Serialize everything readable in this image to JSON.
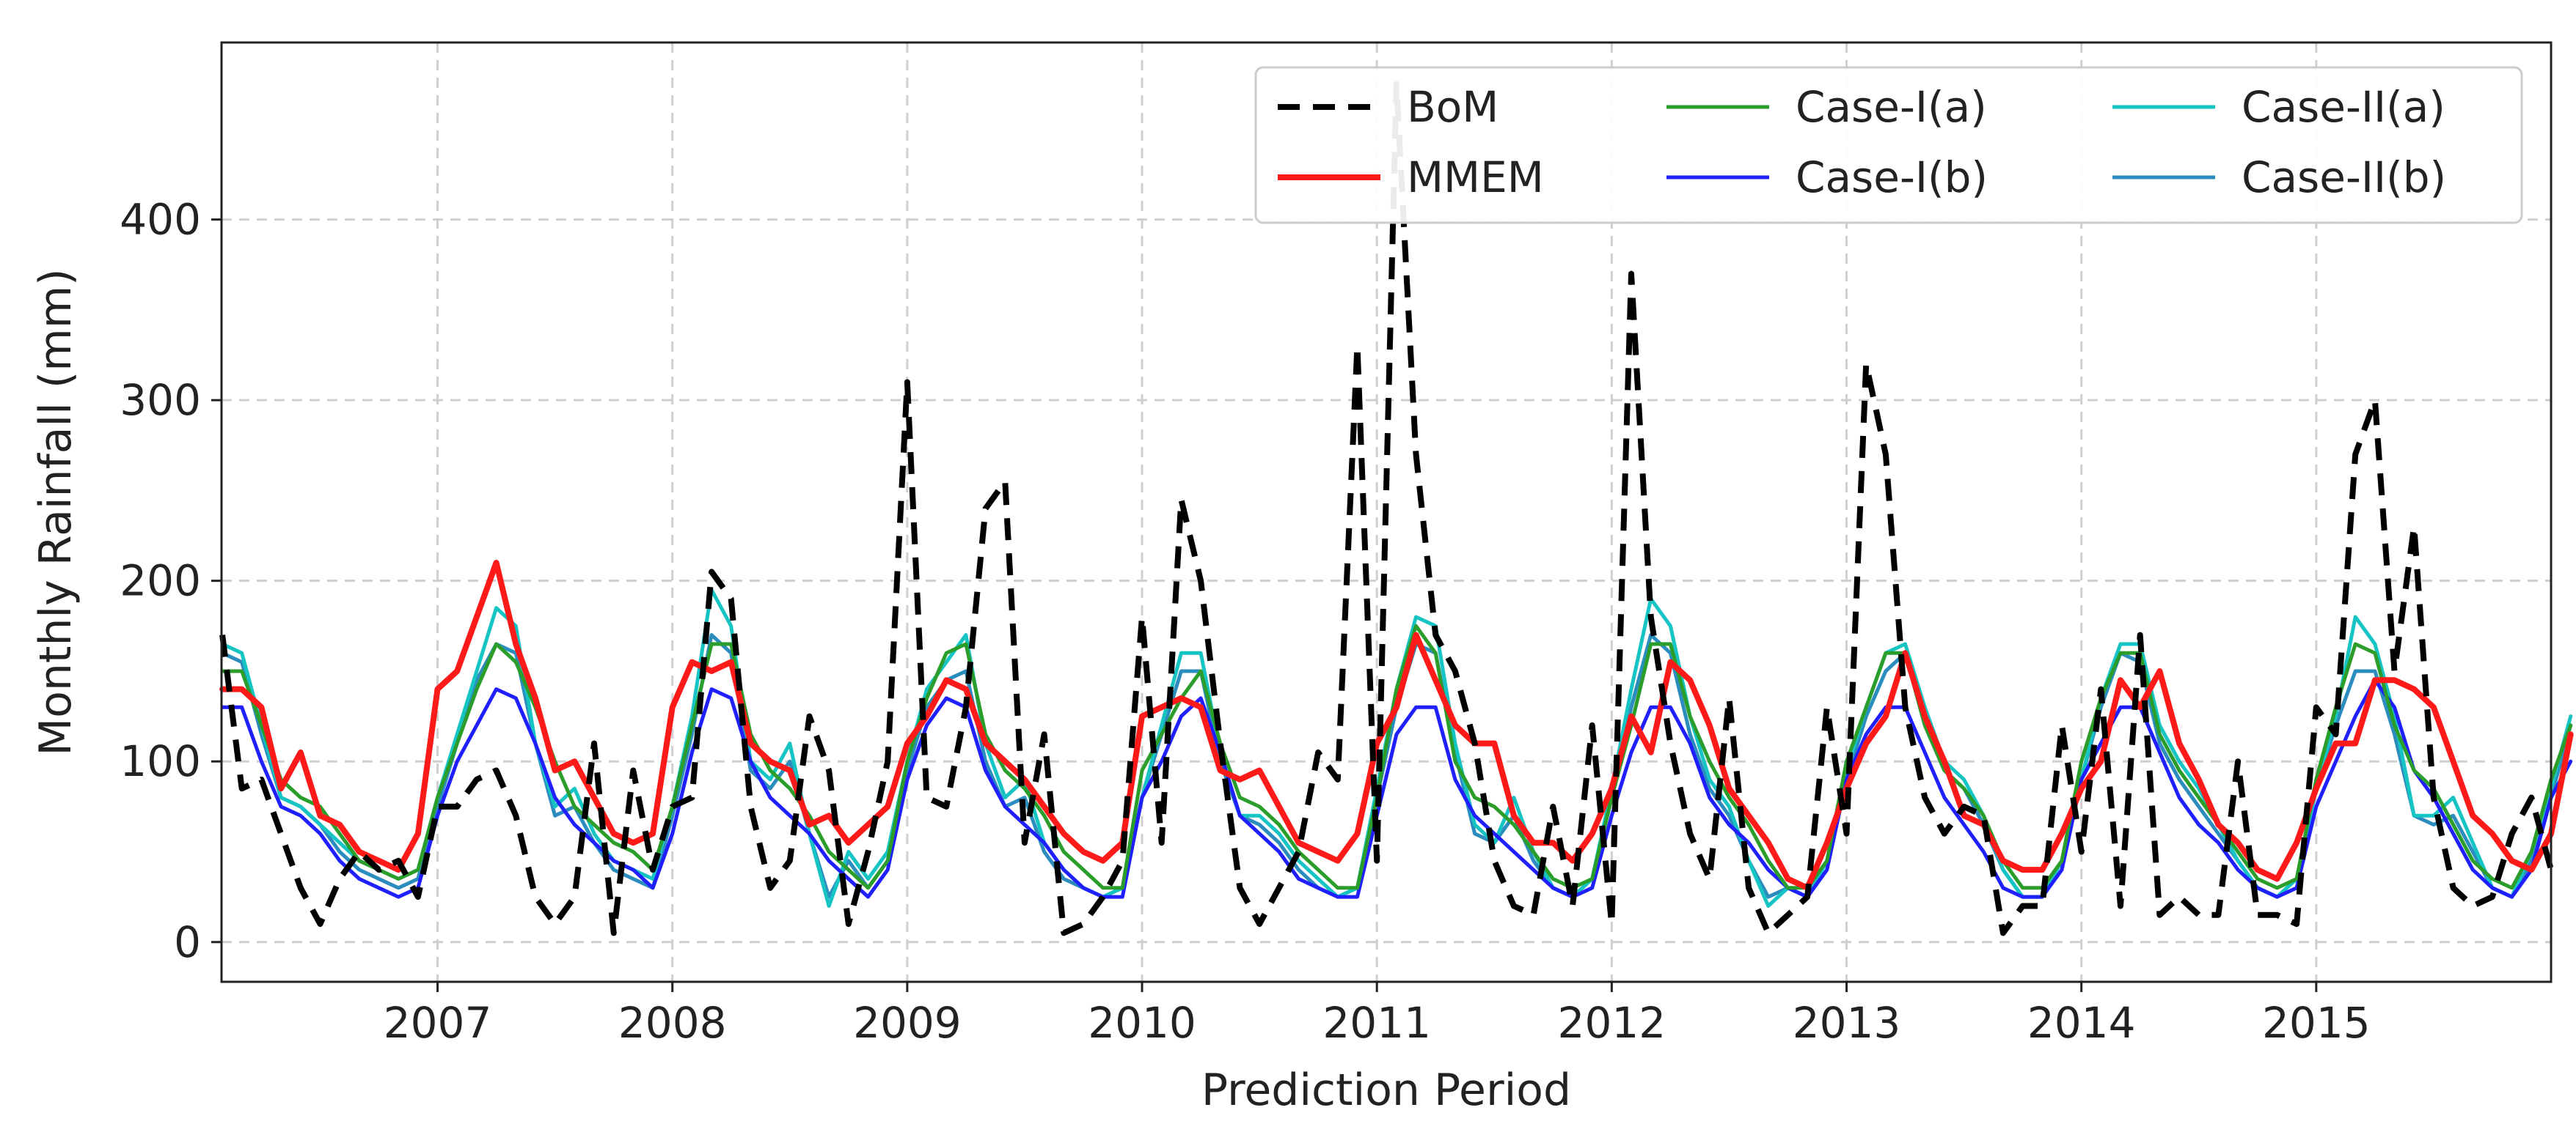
{
  "chart_data": {
    "type": "line",
    "title": "",
    "xlabel": "Prediction Period",
    "ylabel": "Monthly Rainfall (mm)",
    "xlim": [
      2006.08,
      2016.0
    ],
    "ylim": [
      -22,
      498
    ],
    "grid": true,
    "legend_position": "top-right",
    "x_ticks": [
      2007,
      2008,
      2009,
      2010,
      2011,
      2012,
      2013,
      2014,
      2015
    ],
    "x_tick_labels": [
      "2007",
      "2008",
      "2009",
      "2010",
      "2011",
      "2012",
      "2013",
      "2014",
      "2015"
    ],
    "y_ticks": [
      0,
      100,
      200,
      300,
      400
    ],
    "y_tick_labels": [
      "0",
      "100",
      "200",
      "300",
      "400"
    ],
    "x_start": 2006.0833,
    "x_step": 0.0833333,
    "series": [
      {
        "name": "BoM",
        "color": "#000000",
        "style": "dashed",
        "values": [
          170,
          85,
          90,
          60,
          30,
          10,
          35,
          50,
          40,
          45,
          25,
          75,
          75,
          90,
          95,
          70,
          25,
          10,
          25,
          110,
          5,
          95,
          40,
          75,
          80,
          205,
          190,
          75,
          30,
          45,
          125,
          95,
          10,
          50,
          100,
          310,
          80,
          75,
          130,
          240,
          255,
          55,
          115,
          5,
          10,
          25,
          45,
          180,
          55,
          245,
          200,
          110,
          30,
          10,
          30,
          50,
          105,
          90,
          330,
          45,
          475,
          270,
          170,
          150,
          110,
          45,
          20,
          15,
          75,
          20,
          120,
          10,
          370,
          180,
          110,
          60,
          35,
          135,
          30,
          5,
          15,
          25,
          130,
          60,
          320,
          270,
          130,
          80,
          60,
          75,
          70,
          5,
          20,
          20,
          120,
          50,
          140,
          20,
          170,
          15,
          25,
          15,
          15,
          100,
          15,
          15,
          10,
          130,
          115,
          270,
          300,
          150,
          230,
          80,
          30,
          20,
          25,
          60,
          80,
          40
        ]
      },
      {
        "name": "MMEM",
        "color": "#ff1a1a",
        "style": "solid",
        "values": [
          140,
          140,
          130,
          85,
          105,
          70,
          65,
          50,
          45,
          40,
          60,
          140,
          150,
          180,
          210,
          165,
          135,
          95,
          100,
          80,
          60,
          55,
          60,
          130,
          155,
          150,
          155,
          110,
          100,
          95,
          65,
          70,
          55,
          65,
          75,
          110,
          125,
          145,
          140,
          110,
          100,
          90,
          75,
          60,
          50,
          45,
          55,
          125,
          130,
          135,
          130,
          95,
          90,
          95,
          75,
          55,
          50,
          45,
          60,
          110,
          130,
          170,
          145,
          120,
          110,
          110,
          70,
          55,
          55,
          45,
          60,
          85,
          125,
          105,
          155,
          145,
          120,
          85,
          70,
          55,
          35,
          30,
          55,
          85,
          110,
          125,
          160,
          125,
          100,
          70,
          65,
          45,
          40,
          40,
          60,
          85,
          100,
          145,
          130,
          150,
          110,
          90,
          65,
          55,
          40,
          35,
          55,
          85,
          110,
          110,
          145,
          145,
          140,
          130,
          100,
          70,
          60,
          45,
          40,
          60,
          115
        ]
      },
      {
        "name": "Case-I(a)",
        "color": "#2a9d2a",
        "style": "solid",
        "values": [
          150,
          150,
          120,
          90,
          80,
          75,
          60,
          45,
          40,
          35,
          40,
          80,
          110,
          140,
          165,
          155,
          130,
          100,
          75,
          65,
          55,
          50,
          40,
          75,
          120,
          165,
          165,
          115,
          95,
          85,
          70,
          50,
          40,
          30,
          45,
          100,
          135,
          160,
          165,
          115,
          95,
          85,
          70,
          50,
          40,
          30,
          30,
          95,
          115,
          135,
          150,
          110,
          80,
          75,
          65,
          50,
          40,
          30,
          30,
          80,
          140,
          175,
          160,
          100,
          80,
          75,
          65,
          50,
          35,
          30,
          35,
          80,
          120,
          165,
          165,
          125,
          100,
          80,
          65,
          45,
          30,
          30,
          45,
          100,
          130,
          160,
          160,
          120,
          95,
          85,
          70,
          45,
          30,
          30,
          45,
          100,
          135,
          160,
          160,
          115,
          95,
          80,
          65,
          50,
          35,
          30,
          35,
          90,
          130,
          165,
          160,
          120,
          95,
          85,
          65,
          45,
          35,
          30,
          50,
          90,
          120
        ]
      },
      {
        "name": "Case-I(b)",
        "color": "#1f1fff",
        "style": "solid",
        "values": [
          130,
          130,
          100,
          75,
          70,
          60,
          45,
          35,
          30,
          25,
          30,
          70,
          100,
          120,
          140,
          135,
          110,
          80,
          65,
          55,
          45,
          40,
          30,
          60,
          105,
          140,
          135,
          100,
          80,
          70,
          60,
          45,
          35,
          25,
          40,
          90,
          120,
          135,
          130,
          95,
          75,
          65,
          55,
          40,
          30,
          25,
          25,
          80,
          100,
          125,
          135,
          105,
          70,
          60,
          50,
          35,
          30,
          25,
          25,
          70,
          115,
          130,
          130,
          90,
          70,
          60,
          50,
          40,
          30,
          25,
          30,
          70,
          105,
          130,
          130,
          110,
          80,
          65,
          55,
          40,
          30,
          25,
          40,
          90,
          115,
          130,
          130,
          105,
          80,
          65,
          50,
          30,
          25,
          25,
          40,
          90,
          110,
          130,
          130,
          105,
          80,
          65,
          55,
          40,
          30,
          25,
          30,
          75,
          100,
          125,
          145,
          130,
          95,
          80,
          60,
          40,
          30,
          25,
          40,
          80,
          100
        ]
      },
      {
        "name": "Case-II(a)",
        "color": "#17c4c4",
        "style": "solid",
        "values": [
          165,
          160,
          120,
          80,
          75,
          65,
          55,
          45,
          40,
          35,
          40,
          80,
          115,
          150,
          185,
          175,
          110,
          75,
          85,
          60,
          45,
          40,
          35,
          75,
          125,
          195,
          175,
          100,
          90,
          110,
          60,
          20,
          50,
          35,
          50,
          100,
          140,
          155,
          170,
          110,
          80,
          90,
          55,
          40,
          30,
          25,
          30,
          80,
          120,
          160,
          160,
          105,
          70,
          70,
          60,
          45,
          35,
          25,
          30,
          85,
          140,
          180,
          175,
          110,
          65,
          55,
          80,
          50,
          30,
          25,
          35,
          85,
          140,
          190,
          175,
          125,
          90,
          75,
          45,
          20,
          30,
          25,
          45,
          95,
          130,
          160,
          165,
          130,
          100,
          90,
          70,
          40,
          25,
          25,
          45,
          90,
          135,
          165,
          165,
          120,
          100,
          85,
          65,
          45,
          30,
          25,
          35,
          85,
          125,
          180,
          165,
          125,
          70,
          70,
          80,
          55,
          30,
          25,
          50,
          85,
          125
        ]
      },
      {
        "name": "Case-II(b)",
        "color": "#2b8cbe",
        "style": "solid",
        "values": [
          160,
          155,
          115,
          80,
          75,
          65,
          50,
          40,
          35,
          30,
          35,
          75,
          110,
          145,
          165,
          160,
          110,
          70,
          75,
          55,
          40,
          35,
          30,
          70,
          115,
          170,
          160,
          95,
          85,
          100,
          60,
          25,
          45,
          30,
          45,
          95,
          130,
          145,
          150,
          100,
          75,
          80,
          50,
          35,
          30,
          25,
          30,
          80,
          115,
          150,
          150,
          100,
          70,
          65,
          55,
          40,
          30,
          25,
          30,
          80,
          130,
          165,
          160,
          105,
          60,
          55,
          70,
          45,
          30,
          25,
          35,
          80,
          130,
          170,
          160,
          115,
          85,
          70,
          45,
          25,
          30,
          25,
          45,
          90,
          125,
          150,
          160,
          120,
          95,
          85,
          65,
          40,
          25,
          25,
          45,
          90,
          130,
          160,
          155,
          110,
          90,
          75,
          60,
          45,
          30,
          25,
          35,
          85,
          120,
          150,
          150,
          115,
          70,
          65,
          70,
          50,
          30,
          25,
          45,
          80,
          120
        ]
      }
    ]
  }
}
